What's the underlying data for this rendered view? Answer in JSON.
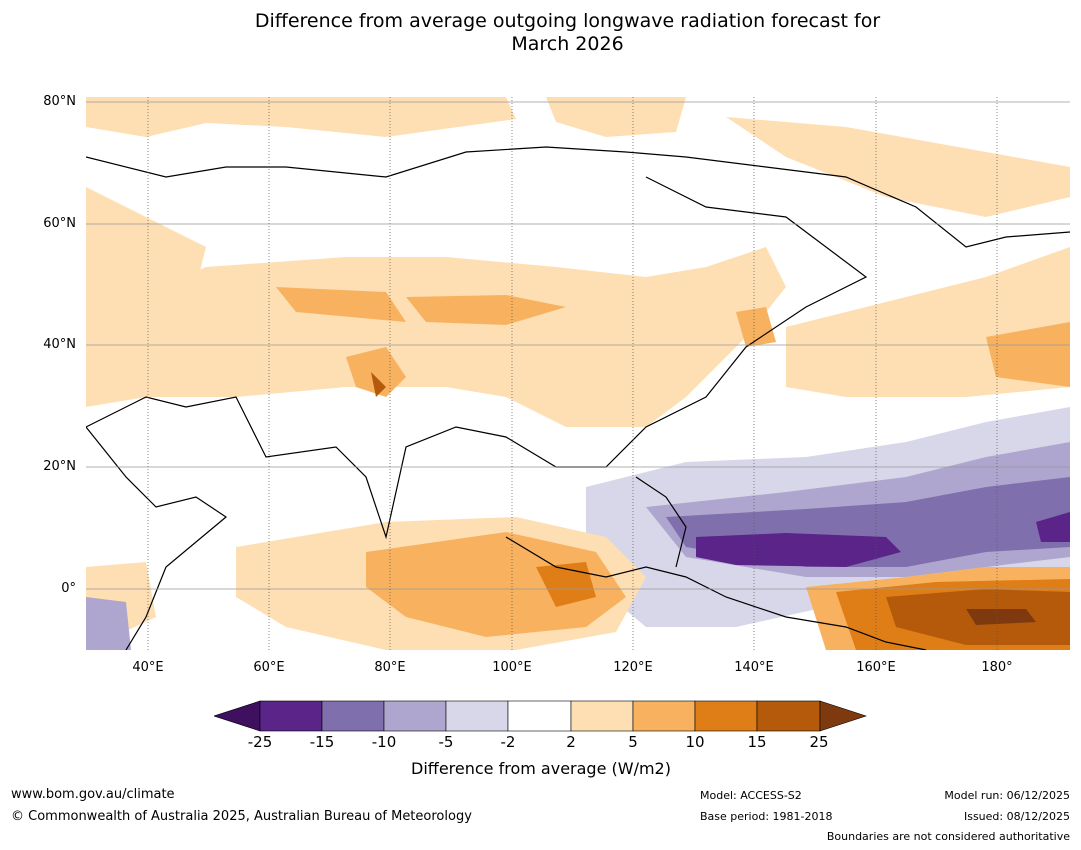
{
  "title": {
    "line1": "Difference from average outgoing longwave radiation forecast for",
    "line2": "March 2026"
  },
  "map": {
    "lat_labels": [
      "80°N",
      "60°N",
      "40°N",
      "20°N",
      "0°"
    ],
    "lon_labels": [
      "40°E",
      "60°E",
      "80°E",
      "100°E",
      "120°E",
      "140°E",
      "160°E",
      "180°"
    ]
  },
  "colorbar": {
    "ticks": [
      "-25",
      "-15",
      "-10",
      "-5",
      "-2",
      "2",
      "5",
      "10",
      "15",
      "25"
    ],
    "colors": [
      "#3f0f60",
      "#5a2489",
      "#7f6fad",
      "#aea6cf",
      "#d8d7ea",
      "#ffffff",
      "#fddfb3",
      "#f8b25f",
      "#df7d17",
      "#b45a0a",
      "#7e3a0e"
    ],
    "label": "Difference from average (W/m2)"
  },
  "footer": {
    "url": "www.bom.gov.au/climate",
    "copyright": "© Commonwealth of Australia 2025, Australian Bureau of Meteorology",
    "model": "Model: ACCESS-S2",
    "base_period": "Base period: 1981-2018",
    "model_run": "Model run: 06/12/2025",
    "issued": "Issued: 08/12/2025",
    "disclaimer": "Boundaries are not considered authoritative"
  }
}
